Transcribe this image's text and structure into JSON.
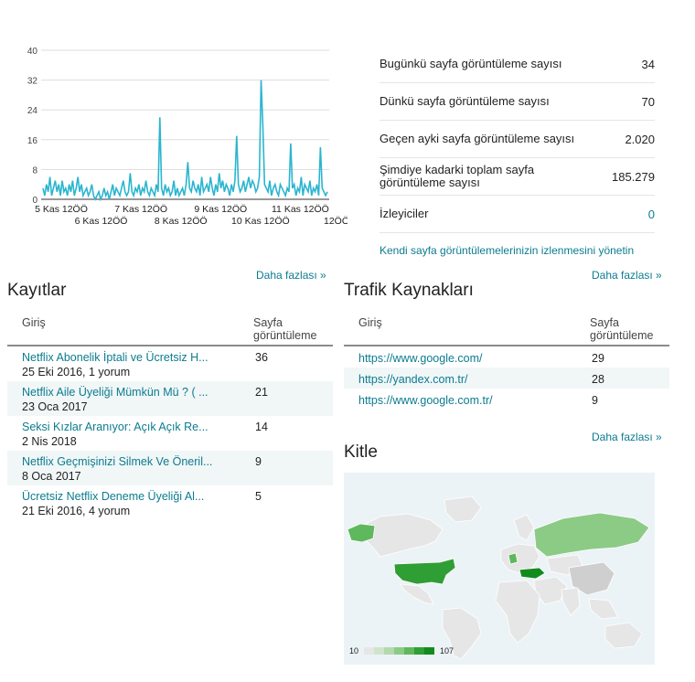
{
  "chart_data": {
    "type": "line",
    "x_tick_labels": [
      "5 Kas 12ÖÖ",
      "6 Kas 12ÖÖ",
      "7 Kas 12ÖÖ",
      "8 Kas 12ÖÖ",
      "9 Kas 12ÖÖ",
      "10 Kas 12ÖÖ",
      "11 Kas 12ÖÖ",
      "12ÖÖ"
    ],
    "y_ticks": [
      0,
      8,
      16,
      24,
      32,
      40
    ],
    "ylim": [
      0,
      40
    ],
    "grid": true,
    "line_color": "#2bb5cf",
    "values": [
      3,
      1,
      4,
      2,
      6,
      1,
      3,
      5,
      2,
      4,
      1,
      5,
      2,
      3,
      1,
      4,
      2,
      5,
      1,
      3,
      6,
      2,
      4,
      1,
      2,
      3,
      1,
      2,
      4,
      1,
      0,
      1,
      2,
      0,
      1,
      3,
      1,
      2,
      0,
      2,
      4,
      1,
      3,
      2,
      1,
      3,
      5,
      2,
      1,
      2,
      7,
      2,
      1,
      3,
      2,
      4,
      1,
      3,
      2,
      5,
      2,
      1,
      3,
      2,
      1,
      4,
      2,
      22,
      3,
      1,
      4,
      2,
      3,
      1,
      2,
      5,
      1,
      3,
      1,
      2,
      3,
      1,
      4,
      10,
      3,
      2,
      5,
      3,
      2,
      4,
      1,
      6,
      2,
      3,
      4,
      2,
      6,
      3,
      1,
      4,
      2,
      7,
      3,
      5,
      2,
      4,
      3,
      1,
      4,
      2,
      5,
      17,
      4,
      2,
      3,
      5,
      2,
      4,
      6,
      3,
      5,
      4,
      2,
      3,
      6,
      32,
      20,
      4,
      3,
      2,
      5,
      1,
      3,
      4,
      2,
      1,
      4,
      3,
      2,
      1,
      3,
      2,
      15,
      3,
      4,
      1,
      3,
      2,
      6,
      1,
      4,
      3,
      2,
      5,
      1,
      3,
      2,
      4,
      1,
      14,
      3,
      2,
      1,
      2
    ]
  },
  "stats": {
    "rows": [
      {
        "label": "Bugünkü sayfa görüntüleme sayısı",
        "value": "34"
      },
      {
        "label": "Dünkü sayfa görüntüleme sayısı",
        "value": "70"
      },
      {
        "label": "Geçen ayki sayfa görüntüleme sayısı",
        "value": "2.020"
      },
      {
        "label": "Şimdiye kadarki toplam sayfa görüntüleme sayısı",
        "value": "185.279"
      },
      {
        "label": "İzleyiciler",
        "value": "0"
      }
    ],
    "manage_link": "Kendi sayfa görüntülemelerinizin izlenmesini yönetin"
  },
  "more_label": "Daha fazlası »",
  "posts": {
    "title": "Kayıtlar",
    "col_entry": "Giriş",
    "col_views_1": "Sayfa",
    "col_views_2": "görüntüleme",
    "rows": [
      {
        "title": "Netflix Abonelik İptali ve Ücretsiz H...",
        "meta": "25 Eki 2016, 1 yorum",
        "views": "36"
      },
      {
        "title": "Netflix Aile Üyeliği Mümkün Mü ? ( ...",
        "meta": "23 Oca 2017",
        "views": "21"
      },
      {
        "title": "Seksi Kızlar Aranıyor: Açık Açık Re...",
        "meta": "2 Nis 2018",
        "views": "14"
      },
      {
        "title": "Netflix Geçmişinizi Silmek Ve Öneril...",
        "meta": "8 Oca 2017",
        "views": "9"
      },
      {
        "title": "Ücretsiz Netflix Deneme Üyeliği Al...",
        "meta": "21 Eki 2016, 4 yorum",
        "views": "5"
      }
    ]
  },
  "traffic": {
    "title": "Trafik Kaynakları",
    "col_entry": "Giriş",
    "col_views_1": "Sayfa",
    "col_views_2": "görüntüleme",
    "rows": [
      {
        "url": "https://www.google.com/",
        "views": "29"
      },
      {
        "url": "https://yandex.com.tr/",
        "views": "28"
      },
      {
        "url": "https://www.google.com.tr/",
        "views": "9"
      }
    ]
  },
  "audience": {
    "title": "Kitle",
    "legend_min": "10",
    "legend_max": "107",
    "legend_colors": [
      "#e6e6e6",
      "#cfe5cb",
      "#b3d9ad",
      "#8ccb86",
      "#5fb85d",
      "#2f9e34",
      "#128b1d"
    ]
  }
}
